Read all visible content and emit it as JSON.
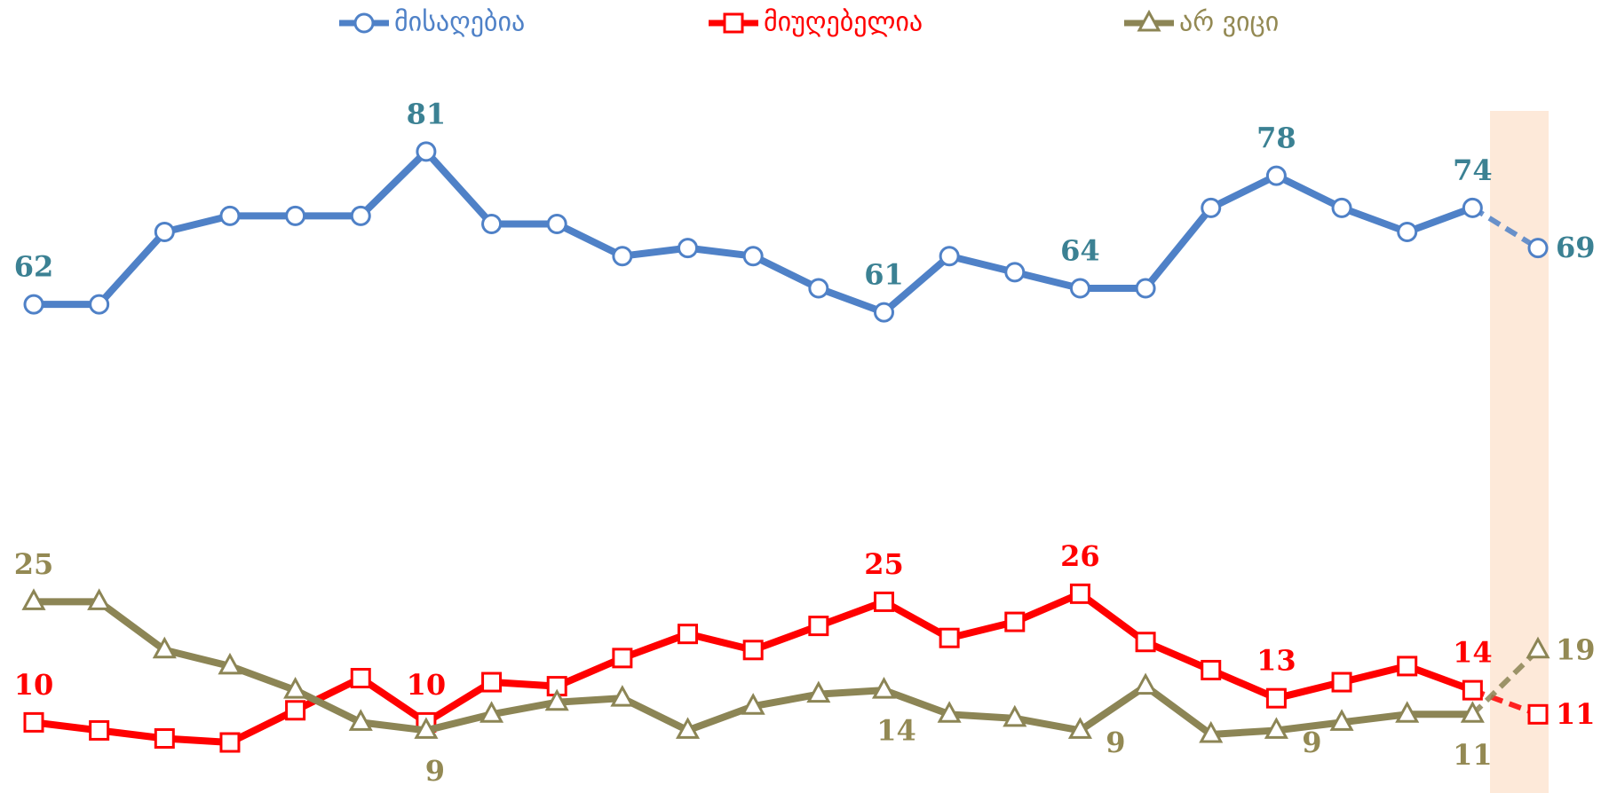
{
  "chart_data": {
    "type": "line",
    "categories": [
      null,
      null,
      null,
      null,
      null,
      null,
      null,
      null,
      null,
      null,
      null,
      null,
      null,
      null,
      null,
      null,
      null,
      null,
      null,
      null,
      null,
      null,
      null,
      null
    ],
    "series": [
      {
        "name": "მისაღებია",
        "color": "#4f81c7",
        "label_color": "#3b8193",
        "marker": "circle",
        "values": [
          62,
          62,
          71,
          73,
          73,
          73,
          81,
          72,
          72,
          68,
          69,
          68,
          64,
          61,
          68,
          66,
          64,
          64,
          74,
          78,
          74,
          71,
          74,
          69
        ]
      },
      {
        "name": "მიუღებელია",
        "color": "#ff0000",
        "label_color": "#ff0000",
        "marker": "square",
        "values": [
          10,
          9,
          8,
          7.5,
          11.5,
          15.5,
          10,
          15,
          14.5,
          18,
          21,
          19,
          22,
          25,
          20.5,
          22.5,
          26,
          20,
          16.5,
          13,
          15,
          17,
          14,
          11
        ]
      },
      {
        "name": "არ ვიცი",
        "color": "#8c8555",
        "label_color": "#938953",
        "marker": "triangle",
        "values": [
          25,
          25,
          19,
          17,
          14,
          10,
          9,
          11,
          12.5,
          13,
          9,
          12,
          13.5,
          14,
          11,
          10.5,
          9,
          14.5,
          8.5,
          9,
          10,
          11,
          11,
          19
        ]
      }
    ],
    "labeled_points": [
      0,
      6,
      13,
      16,
      19,
      22,
      23
    ],
    "dashed_last_segment": true,
    "highlight_last": true,
    "highlight_color": "#fde9d9",
    "ylim": [
      0,
      95
    ],
    "grid": false,
    "legend": "top"
  }
}
